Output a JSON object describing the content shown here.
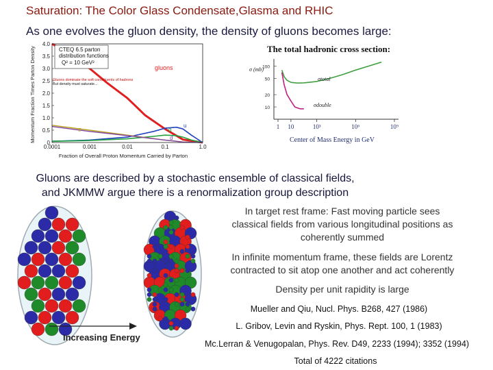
{
  "slide": {
    "title": "Saturation: The Color Glass Condensate,Glasma and RHIC",
    "subtitle": "As one evolves the gluon density, the density of gluons becomes large:",
    "gluon_line1": "Gluons are described by a stochastic ensemble of classical fields,",
    "gluon_line2": "and JKMMW argue there is a renormalization group description",
    "note1_line1": "In target rest frame:  Fast moving particle sees",
    "note1_line2": "classical fields from various longitudinal positions as",
    "note1_line3": "coherently summed",
    "note2_line1": "In infinite momentum frame, these fields are Lorentz",
    "note2_line2": "contracted to sit atop one another and act coherently",
    "note3": "Density per unit rapidity is large",
    "ref1": "Mueller and Qiu, Nucl. Phys. B268, 427 (1986)",
    "ref2": "L. Gribov, Levin and Ryskin, Phys. Rept. 100, 1 (1983)",
    "ref3": "Mc.Lerran & Venugopalan, Phys. Rev. D49, 2233 (1994); 3352 (1994)",
    "citations": "Total of 4222 citations",
    "arrow_label": "Increasing Energy"
  },
  "pdf_plot": {
    "legend_line1": "CTEQ 6.5 parton",
    "legend_line2": "distribution functions",
    "legend_line3": "Q² = 10 GeV²",
    "note_line1": "Gluons dominate the soft constituents of hadrons",
    "note_line2": "But density must saturate...",
    "gluon_label": "gluons",
    "u_label": "u",
    "d_label": "d",
    "ubar_label": "u̅",
    "dbar_label": "d",
    "ylabel": "Momentum Fraction Times Parton Density",
    "xlabel_line1": "Fraction of Overall Proton Momentum Carried by Parton",
    "y_ticks": [
      "4.0",
      "3.5",
      "3.0",
      "2.5",
      "2.0",
      "1.5",
      "1.0",
      "0.5",
      "0"
    ],
    "x_ticks": [
      "0.0001",
      "0.001",
      "0.01",
      "0.1",
      "1.0"
    ]
  },
  "xsec_plot": {
    "title": "The total hadronic cross section:",
    "ylabel": "σ (mb)",
    "total_label": "σtotal",
    "double_label": "σdouble",
    "y_ticks": [
      "100",
      "50",
      "20",
      "10"
    ],
    "x_ticks": [
      "1",
      "10",
      "10³",
      "10⁶",
      "10⁹"
    ],
    "xlabel": "Center of Mass Energy in GeV"
  },
  "colors": {
    "title": "#8a1a10",
    "text": "#15153a",
    "gluon_curve": "#e02020",
    "u_curve": "#2040c0",
    "d_curve": "#20a040",
    "total_curve": "#40a040",
    "double_curve": "#c02080",
    "ball_red": "#e11d1d",
    "ball_blue": "#2b2ba8",
    "ball_green": "#1f8a2a"
  },
  "chart_data": [
    {
      "type": "line",
      "title": "CTEQ 6.5 parton distribution functions",
      "subtitle": "Q² = 10 GeV²",
      "xlabel": "Fraction of Overall Proton Momentum Carried by Parton",
      "ylabel": "Momentum Fraction Times Parton Density",
      "xscale": "log",
      "xlim": [
        0.0001,
        1.0
      ],
      "ylim": [
        0,
        4.0
      ],
      "series": [
        {
          "name": "gluons",
          "x": [
            0.0001,
            0.0003,
            0.001,
            0.003,
            0.01,
            0.03,
            0.1,
            0.3,
            1.0
          ],
          "values": [
            4.0,
            3.6,
            3.0,
            2.4,
            1.8,
            1.1,
            0.55,
            0.12,
            0.0
          ]
        },
        {
          "name": "u",
          "x": [
            0.0001,
            0.001,
            0.01,
            0.05,
            0.1,
            0.2,
            0.3,
            0.5,
            1.0
          ],
          "values": [
            0.05,
            0.1,
            0.22,
            0.45,
            0.58,
            0.62,
            0.55,
            0.3,
            0.0
          ]
        },
        {
          "name": "d",
          "x": [
            0.0001,
            0.001,
            0.01,
            0.05,
            0.1,
            0.2,
            0.3,
            0.5,
            1.0
          ],
          "values": [
            0.05,
            0.08,
            0.15,
            0.25,
            0.3,
            0.28,
            0.22,
            0.1,
            0.0
          ]
        },
        {
          "name": "u̅",
          "x": [
            0.0001,
            0.001,
            0.01,
            0.1,
            0.3,
            1.0
          ],
          "values": [
            0.7,
            0.5,
            0.3,
            0.1,
            0.02,
            0.0
          ]
        },
        {
          "name": "d̅",
          "x": [
            0.0001,
            0.001,
            0.01,
            0.1,
            0.3,
            1.0
          ],
          "values": [
            0.65,
            0.45,
            0.28,
            0.1,
            0.02,
            0.0
          ]
        }
      ]
    },
    {
      "type": "line",
      "title": "The total hadronic cross section:",
      "xlabel": "Center of Mass Energy in GeV",
      "ylabel": "σ (mb)",
      "xscale": "log",
      "yscale": "log",
      "xlim": [
        1,
        1000000000
      ],
      "ylim": [
        5,
        150
      ],
      "series": [
        {
          "name": "σtotal",
          "x": [
            2,
            3,
            5,
            10,
            30,
            100,
            1000,
            10000,
            100000,
            1000000,
            10000000,
            100000000
          ],
          "values": [
            80,
            55,
            45,
            40,
            38.5,
            39,
            42,
            50,
            62,
            80,
            100,
            125
          ]
        },
        {
          "name": "σdouble",
          "x": [
            2,
            3,
            5,
            10,
            20,
            50,
            100
          ],
          "values": [
            70,
            35,
            20,
            14,
            10,
            9,
            9
          ]
        }
      ]
    }
  ]
}
